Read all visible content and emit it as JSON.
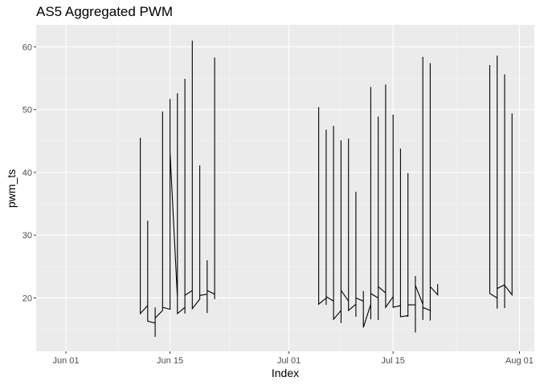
{
  "chart_data": {
    "type": "line",
    "title": "AS5  Aggregated PWM",
    "xlabel": "Index",
    "ylabel": "pwm_ts",
    "x_ticks": [
      {
        "date": "2020-06-01",
        "label": "Jun 01"
      },
      {
        "date": "2020-06-15",
        "label": "Jun 15"
      },
      {
        "date": "2020-07-01",
        "label": "Jul 01"
      },
      {
        "date": "2020-07-15",
        "label": "Jul 15"
      },
      {
        "date": "2020-08-01",
        "label": "Aug 01"
      }
    ],
    "y_ticks": [
      20,
      30,
      40,
      50,
      60
    ],
    "xlim": [
      "2020-05-28",
      "2020-08-03"
    ],
    "ylim": [
      11.5,
      63.5
    ],
    "grid": true,
    "series": [
      {
        "color": "#000000",
        "points": [
          [
            "2020-06-11",
            18
          ],
          [
            "2020-06-11",
            45.5
          ],
          [
            "2020-06-11",
            17.5
          ],
          [
            "2020-06-12",
            18.8
          ],
          [
            "2020-06-12",
            32.3
          ],
          [
            "2020-06-12",
            16.3
          ],
          [
            "2020-06-13",
            16
          ],
          [
            "2020-06-13",
            18.5
          ],
          [
            "2020-06-13",
            13.8
          ],
          [
            "2020-06-13",
            16.8
          ],
          [
            "2020-06-14",
            18
          ],
          [
            "2020-06-14",
            49.7
          ],
          [
            "2020-06-14",
            18.5
          ],
          [
            "2020-06-15",
            18.2
          ],
          [
            "2020-06-15",
            51.7
          ],
          [
            "2020-06-15",
            43.2
          ],
          [
            "2020-06-16",
            20
          ],
          [
            "2020-06-16",
            52.6
          ],
          [
            "2020-06-16",
            17.5
          ],
          [
            "2020-06-17",
            18.5
          ],
          [
            "2020-06-17",
            54.9
          ],
          [
            "2020-06-17",
            17.5
          ],
          [
            "2020-06-17",
            20.4
          ],
          [
            "2020-06-18",
            21.2
          ],
          [
            "2020-06-18",
            61
          ],
          [
            "2020-06-18",
            18.3
          ],
          [
            "2020-06-19",
            19.8
          ],
          [
            "2020-06-19",
            41.1
          ],
          [
            "2020-06-19",
            20.4
          ],
          [
            "2020-06-20",
            20.6
          ],
          [
            "2020-06-20",
            26
          ],
          [
            "2020-06-20",
            17.6
          ],
          [
            "2020-06-20",
            21.2
          ],
          [
            "2020-06-21",
            20.6
          ],
          [
            "2020-06-21",
            58.3
          ],
          [
            "2020-06-21",
            19.8
          ]
        ]
      },
      {
        "color": "#000000",
        "points": [
          [
            "2020-07-05",
            20
          ],
          [
            "2020-07-05",
            50.4
          ],
          [
            "2020-07-05",
            19
          ],
          [
            "2020-07-06",
            20
          ],
          [
            "2020-07-06",
            46.8
          ],
          [
            "2020-07-06",
            18.9
          ],
          [
            "2020-07-06",
            20.2
          ],
          [
            "2020-07-07",
            19.5
          ],
          [
            "2020-07-07",
            47.4
          ],
          [
            "2020-07-07",
            16.6
          ],
          [
            "2020-07-08",
            18
          ],
          [
            "2020-07-08",
            45.1
          ],
          [
            "2020-07-08",
            16
          ],
          [
            "2020-07-08",
            21.2
          ],
          [
            "2020-07-09",
            19.5
          ],
          [
            "2020-07-09",
            45.4
          ],
          [
            "2020-07-09",
            18
          ],
          [
            "2020-07-10",
            19
          ],
          [
            "2020-07-10",
            36.9
          ],
          [
            "2020-07-10",
            17
          ],
          [
            "2020-07-10",
            20
          ],
          [
            "2020-07-11",
            19.5
          ],
          [
            "2020-07-11",
            21.1
          ],
          [
            "2020-07-11",
            15.3
          ],
          [
            "2020-07-12",
            19
          ],
          [
            "2020-07-12",
            53.6
          ],
          [
            "2020-07-12",
            16.6
          ],
          [
            "2020-07-12",
            20.7
          ],
          [
            "2020-07-13",
            20
          ],
          [
            "2020-07-13",
            48.9
          ],
          [
            "2020-07-13",
            16.5
          ],
          [
            "2020-07-13",
            21.8
          ],
          [
            "2020-07-14",
            20.8
          ],
          [
            "2020-07-14",
            54
          ],
          [
            "2020-07-14",
            18.5
          ],
          [
            "2020-07-15",
            20.2
          ],
          [
            "2020-07-15",
            49.2
          ],
          [
            "2020-07-15",
            18.5
          ],
          [
            "2020-07-16",
            18.8
          ],
          [
            "2020-07-16",
            43.8
          ],
          [
            "2020-07-16",
            17
          ],
          [
            "2020-07-17",
            17.2
          ],
          [
            "2020-07-17",
            39.9
          ],
          [
            "2020-07-17",
            17
          ],
          [
            "2020-07-17",
            18.9
          ],
          [
            "2020-07-18",
            18.9
          ],
          [
            "2020-07-18",
            23.5
          ],
          [
            "2020-07-18",
            14.5
          ],
          [
            "2020-07-18",
            22
          ],
          [
            "2020-07-19",
            19
          ],
          [
            "2020-07-19",
            58.4
          ],
          [
            "2020-07-19",
            16.5
          ],
          [
            "2020-07-19",
            18.5
          ],
          [
            "2020-07-20",
            18
          ],
          [
            "2020-07-20",
            57.4
          ],
          [
            "2020-07-20",
            16.4
          ],
          [
            "2020-07-20",
            21.8
          ],
          [
            "2020-07-21",
            20.5
          ],
          [
            "2020-07-21",
            22.2
          ]
        ]
      },
      {
        "color": "#000000",
        "points": [
          [
            "2020-07-28",
            21.6
          ],
          [
            "2020-07-28",
            57.1
          ],
          [
            "2020-07-28",
            20.7
          ],
          [
            "2020-07-29",
            20
          ],
          [
            "2020-07-29",
            58.6
          ],
          [
            "2020-07-29",
            18.3
          ],
          [
            "2020-07-29",
            21.5
          ],
          [
            "2020-07-30",
            22.1
          ],
          [
            "2020-07-30",
            55.6
          ],
          [
            "2020-07-30",
            18.4
          ],
          [
            "2020-07-30",
            22
          ],
          [
            "2020-07-31",
            20.5
          ],
          [
            "2020-07-31",
            49.4
          ]
        ]
      }
    ]
  }
}
